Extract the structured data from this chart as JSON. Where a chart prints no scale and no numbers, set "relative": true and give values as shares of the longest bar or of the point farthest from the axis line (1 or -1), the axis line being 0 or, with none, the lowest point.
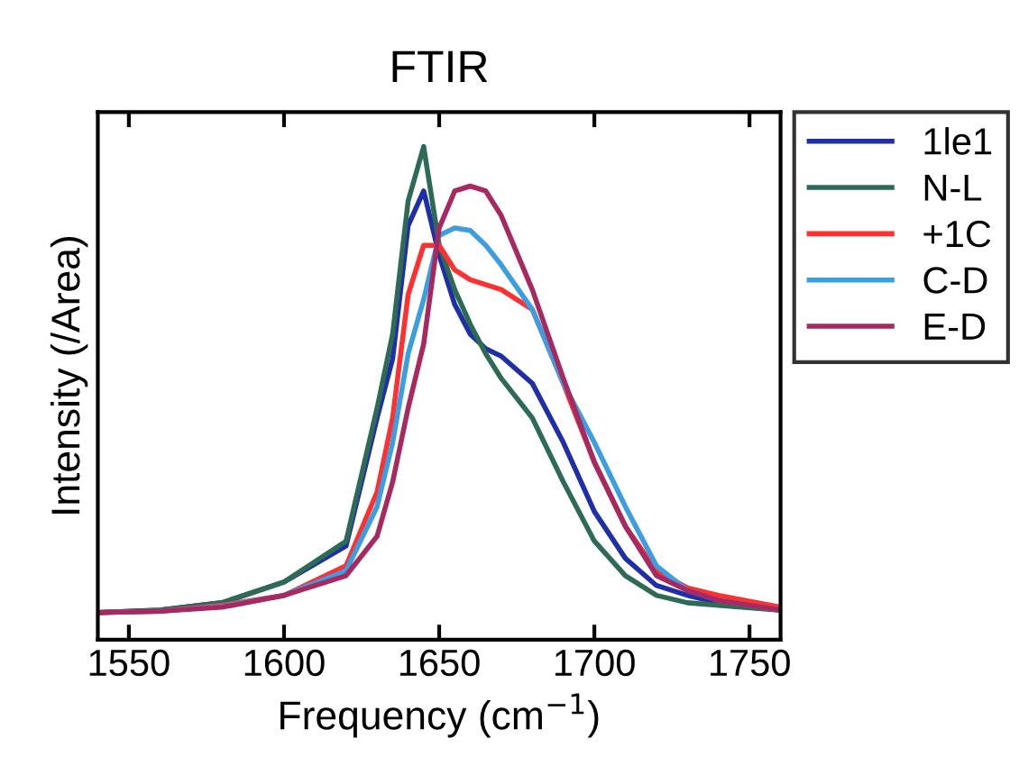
{
  "chart_data": {
    "type": "line",
    "title": "FTIR",
    "xlabel": "Frequency (cm$^{−1}$)",
    "ylabel": "Intensity (/Area)",
    "relative": true,
    "xlim": [
      1540,
      1760
    ],
    "xticks": [
      1550,
      1600,
      1650,
      1700,
      1750
    ],
    "legend": "right",
    "line_style": "solid",
    "marker": "none",
    "grid": false,
    "x": [
      1540,
      1560,
      1580,
      1600,
      1620,
      1630,
      1635,
      1640,
      1645,
      1650,
      1655,
      1660,
      1665,
      1670,
      1680,
      1690,
      1700,
      1710,
      1720,
      1730,
      1740,
      1760
    ],
    "series": [
      {
        "name": "1le1",
        "color": "#1f2fa8",
        "values": [
          0.055,
          0.06,
          0.075,
          0.117,
          0.19,
          0.45,
          0.57,
          0.84,
          0.91,
          0.78,
          0.68,
          0.62,
          0.59,
          0.575,
          0.52,
          0.4,
          0.26,
          0.165,
          0.11,
          0.09,
          0.075,
          0.06
        ]
      },
      {
        "name": "N-L",
        "color": "#2e6b55",
        "values": [
          0.055,
          0.06,
          0.075,
          0.117,
          0.2,
          0.47,
          0.62,
          0.89,
          1.0,
          0.8,
          0.71,
          0.64,
          0.58,
          0.53,
          0.45,
          0.32,
          0.2,
          0.13,
          0.09,
          0.075,
          0.07,
          0.06
        ]
      },
      {
        "name": "+1C",
        "color": "#ff3030",
        "values": [
          0.055,
          0.058,
          0.07,
          0.09,
          0.15,
          0.3,
          0.45,
          0.7,
          0.8,
          0.8,
          0.75,
          0.73,
          0.72,
          0.71,
          0.67,
          0.52,
          0.36,
          0.23,
          0.14,
          0.105,
          0.09,
          0.066
        ]
      },
      {
        "name": "C-D",
        "color": "#3a9ee0",
        "values": [
          0.055,
          0.058,
          0.068,
          0.09,
          0.14,
          0.27,
          0.4,
          0.58,
          0.69,
          0.82,
          0.835,
          0.83,
          0.8,
          0.76,
          0.67,
          0.52,
          0.4,
          0.27,
          0.15,
          0.1,
          0.08,
          0.06
        ]
      },
      {
        "name": "E-D",
        "color": "#a82860",
        "values": [
          0.055,
          0.058,
          0.066,
          0.09,
          0.13,
          0.21,
          0.32,
          0.47,
          0.6,
          0.835,
          0.91,
          0.92,
          0.91,
          0.86,
          0.71,
          0.53,
          0.36,
          0.23,
          0.13,
          0.1,
          0.08,
          0.06
        ]
      }
    ]
  }
}
